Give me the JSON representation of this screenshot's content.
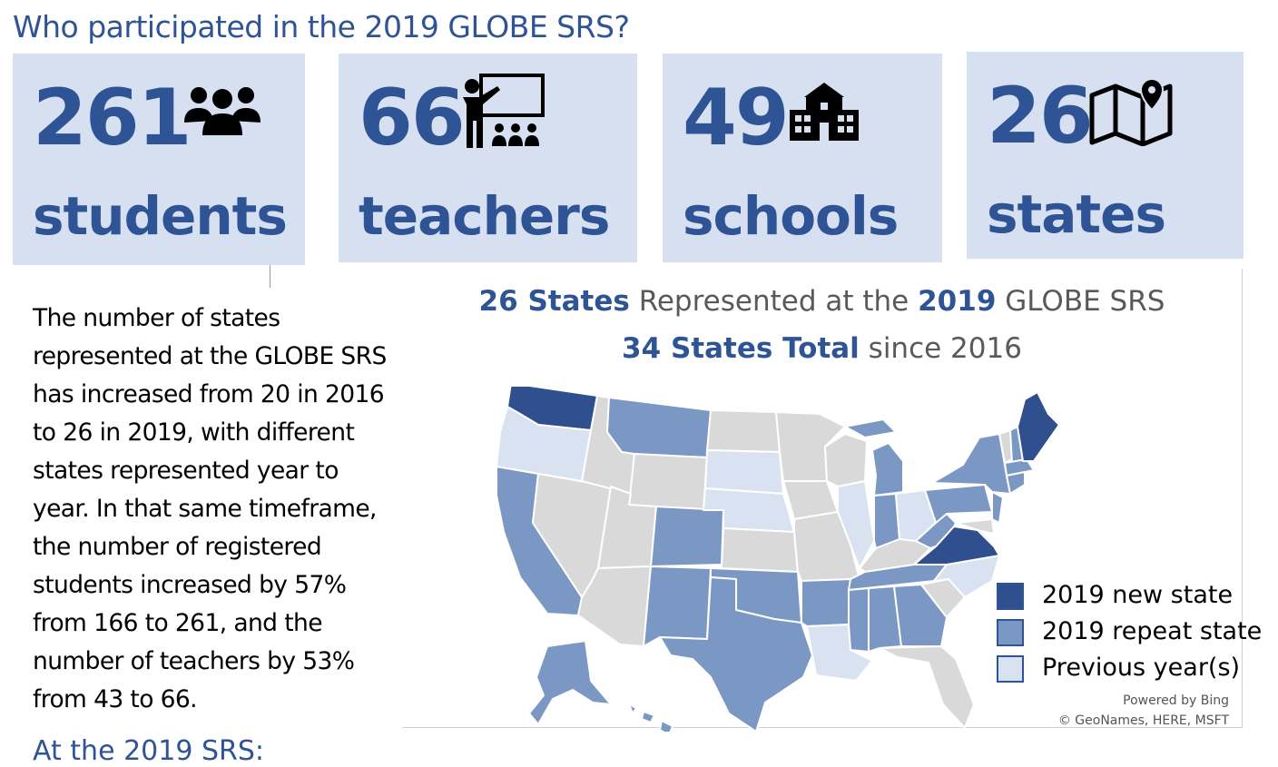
{
  "title": "Who participated in the 2019 GLOBE SRS?",
  "stats": [
    {
      "number": "261",
      "label": "students",
      "icon": "people-group-icon"
    },
    {
      "number": "66",
      "label": "teachers",
      "icon": "teacher-classroom-icon"
    },
    {
      "number": "49",
      "label": "schools",
      "icon": "school-building-icon"
    },
    {
      "number": "26",
      "label": "states",
      "icon": "map-pin-icon"
    }
  ],
  "paragraph": "The number of states represented at the GLOBE SRS has increased from 20 in 2016 to 26 in 2019, with different states represented year to year. In that same timeframe, the number of registered students increased by 57% from 166 to 261, and the number of teachers by 53% from 43 to 66.",
  "subheading": "At the 2019 SRS:",
  "map": {
    "title_line1": {
      "part1": "26 States",
      "part2": " Represented at the ",
      "part3": "2019",
      "part4": " GLOBE SRS"
    },
    "title_line2": {
      "part1": "34 States Total",
      "part2": " since 2016"
    },
    "legend": [
      {
        "label": "2019 new state",
        "color": "#2f4f8f"
      },
      {
        "label": "2019 repeat state",
        "color": "#7b97c4"
      },
      {
        "label": "Previous year(s)",
        "color": "#d9e2f1"
      }
    ],
    "credit_line1": "Powered by Bing",
    "credit_line2": "© GeoNames, HERE, MSFT",
    "colors": {
      "new": "#2f4f8f",
      "repeat": "#7b97c4",
      "previous": "#d9e2f1",
      "none": "#d9d9d9"
    }
  }
}
